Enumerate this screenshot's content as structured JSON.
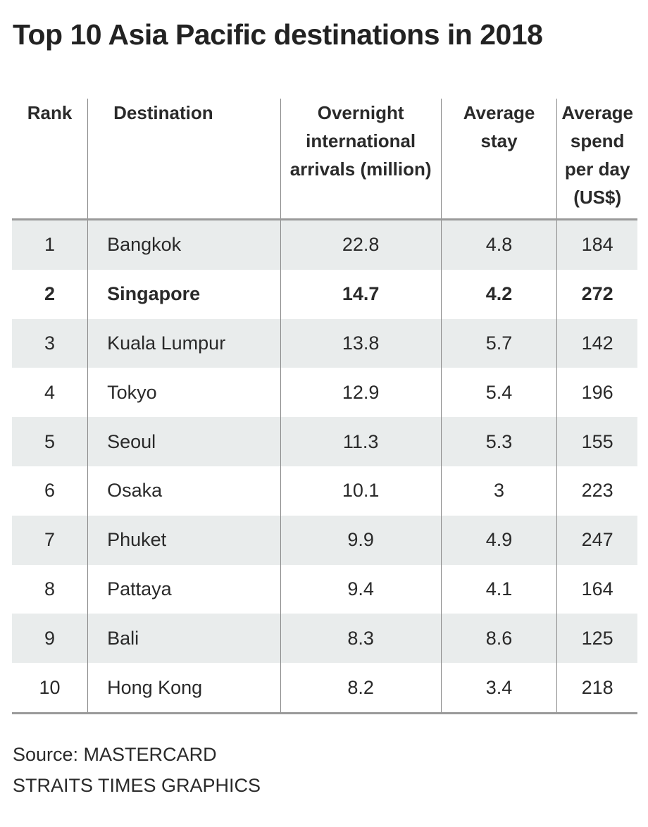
{
  "chart_data": {
    "type": "table",
    "title": "Top 10 Asia Pacific destinations in 2018",
    "columns": [
      "Rank",
      "Destination",
      "Overnight international arrivals (million)",
      "Average stay",
      "Average spend per day (US$)"
    ],
    "rows": [
      [
        "1",
        "Bangkok",
        "22.8",
        "4.8",
        "184"
      ],
      [
        "2",
        "Singapore",
        "14.7",
        "4.2",
        "272"
      ],
      [
        "3",
        "Kuala Lumpur",
        "13.8",
        "5.7",
        "142"
      ],
      [
        "4",
        "Tokyo",
        "12.9",
        "5.4",
        "196"
      ],
      [
        "5",
        "Seoul",
        "11.3",
        "5.3",
        "155"
      ],
      [
        "6",
        "Osaka",
        "10.1",
        "3",
        "223"
      ],
      [
        "7",
        "Phuket",
        "9.9",
        "4.9",
        "247"
      ],
      [
        "8",
        "Pattaya",
        "9.4",
        "4.1",
        "164"
      ],
      [
        "9",
        "Bali",
        "8.3",
        "8.6",
        "125"
      ],
      [
        "10",
        "Hong Kong",
        "8.2",
        "3.4",
        "218"
      ]
    ],
    "highlighted_row": "Singapore",
    "stripe_color": "#e9ecec"
  },
  "source": "Source: MASTERCARD",
  "credit": "STRAITS TIMES GRAPHICS"
}
